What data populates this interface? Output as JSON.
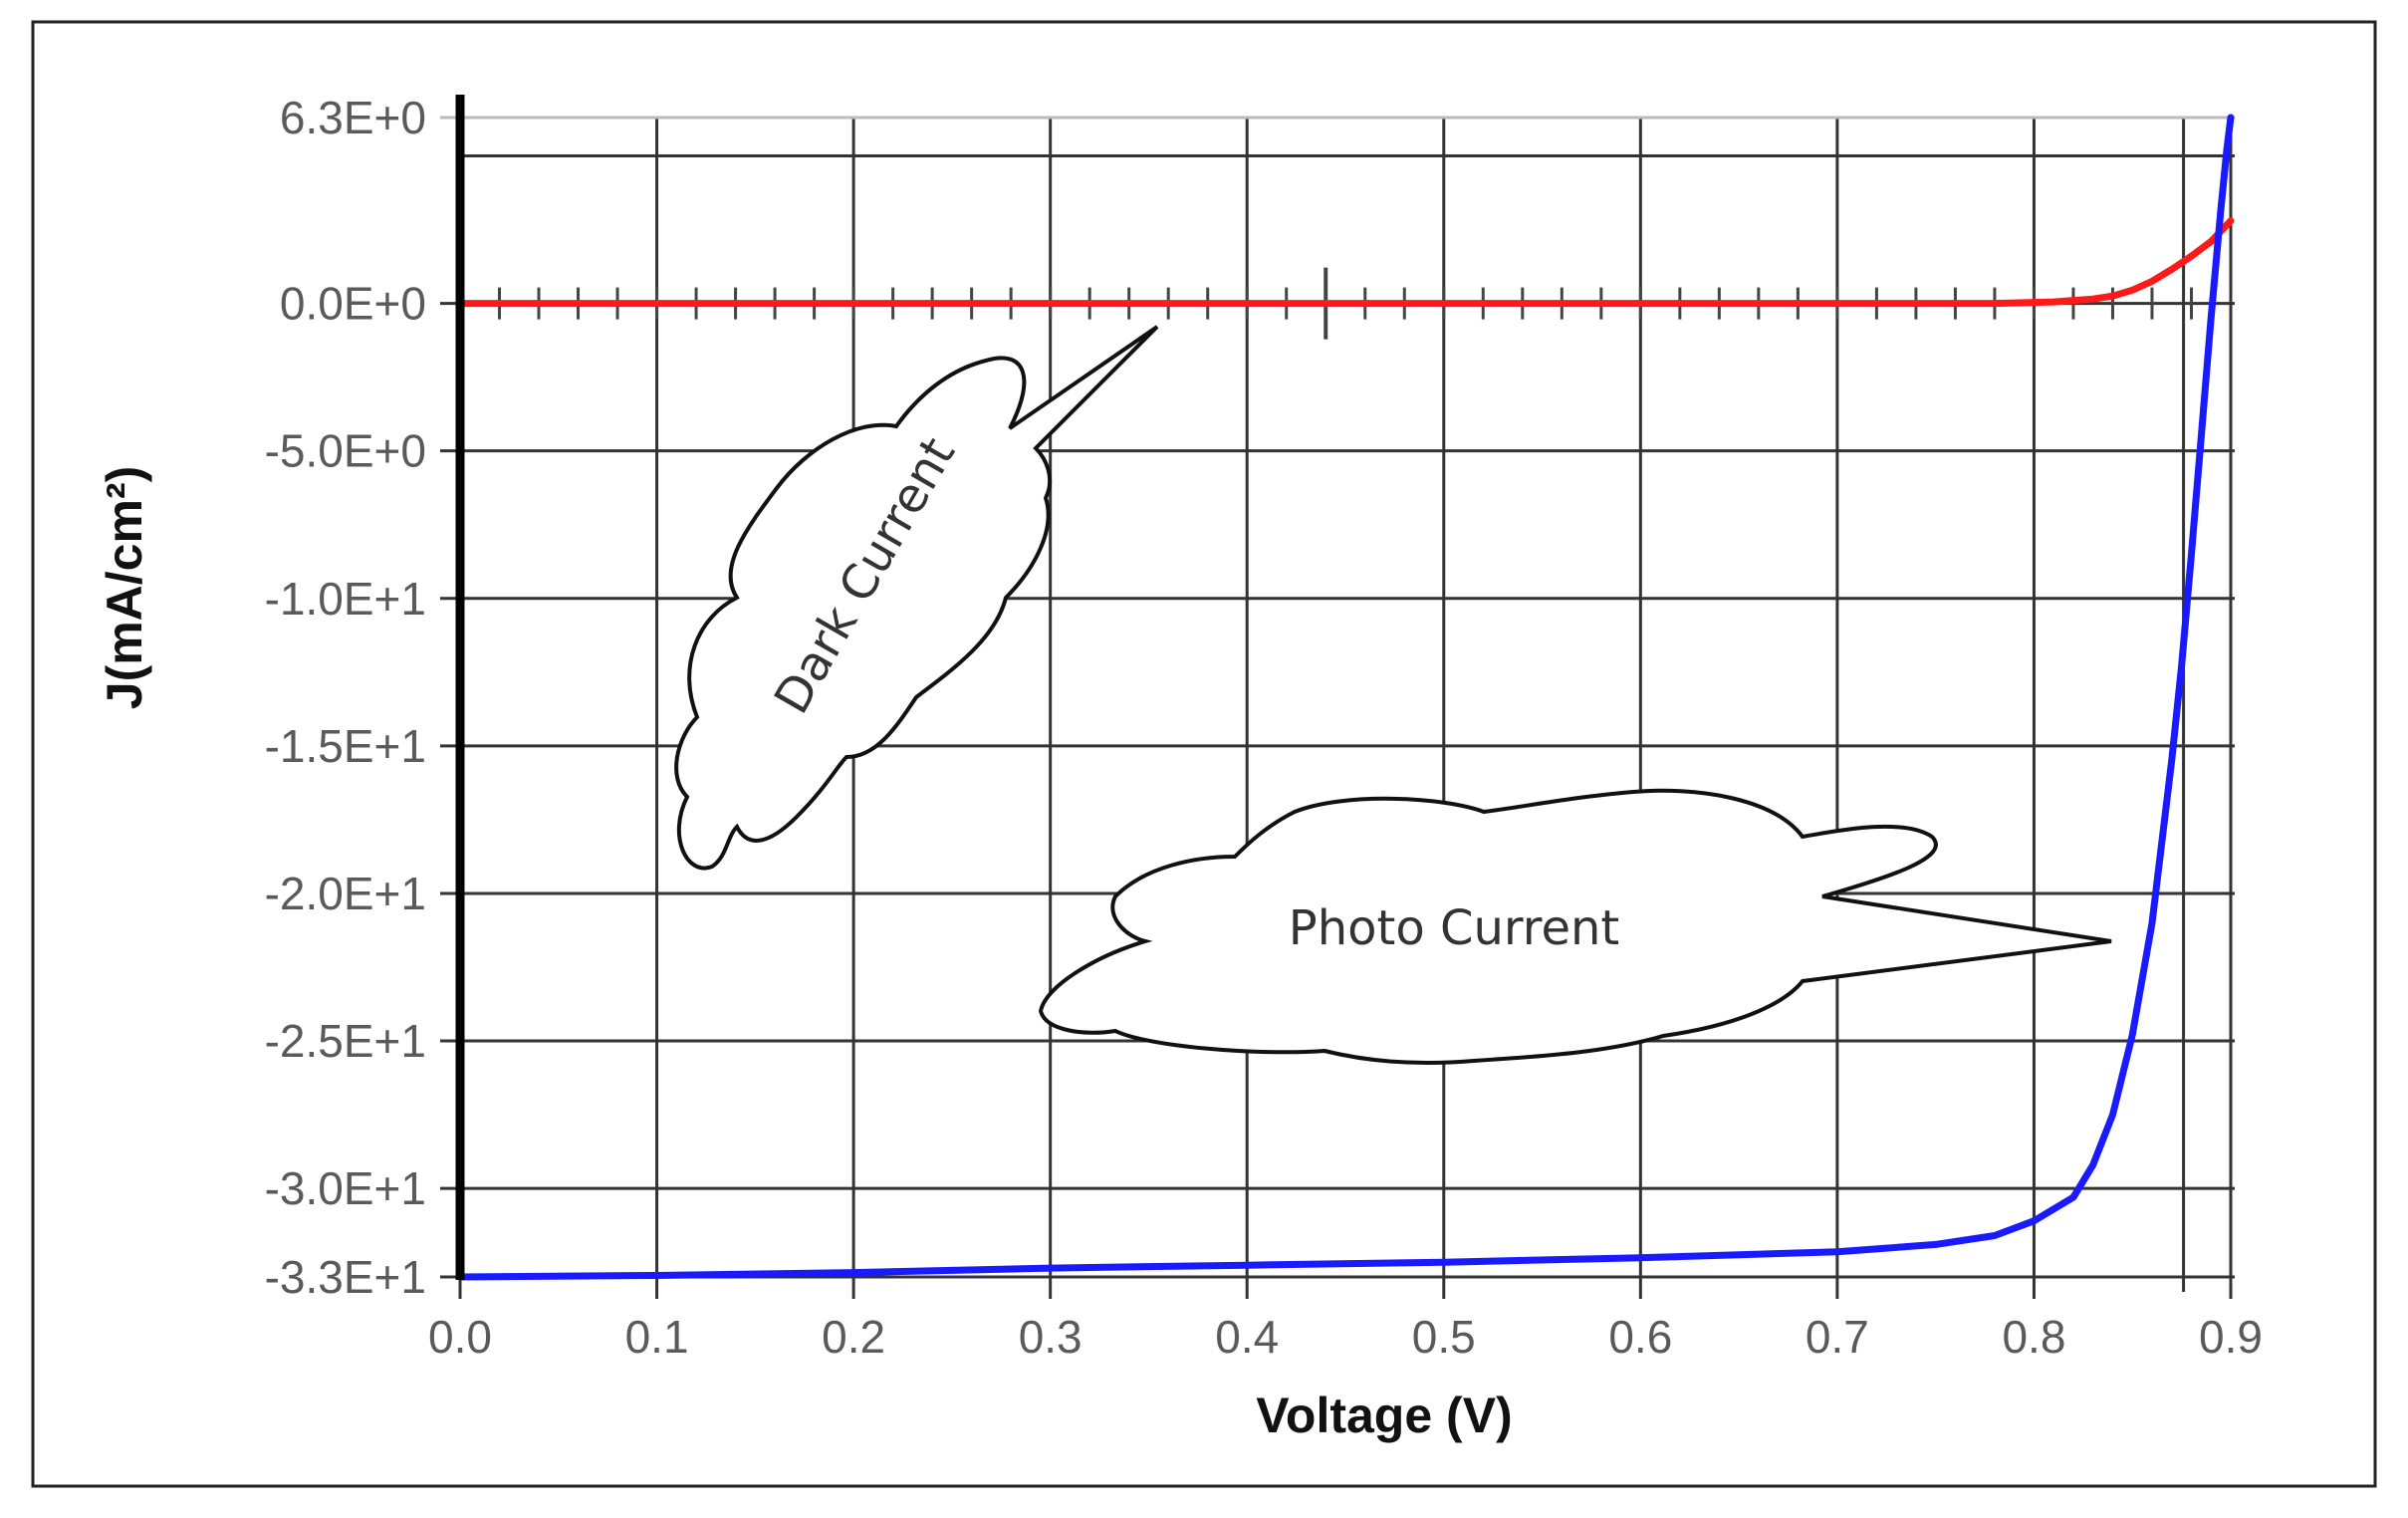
{
  "chart_data": {
    "type": "line",
    "title": "",
    "xlabel": "Voltage (V)",
    "ylabel": "J(mA/cm²)",
    "xlim": [
      0.0,
      0.9
    ],
    "ylim": [
      -33,
      6.3
    ],
    "x_ticks": [
      "0.0",
      "0.1",
      "0.2",
      "0.3",
      "0.4",
      "0.5",
      "0.6",
      "0.7",
      "0.8",
      "0.9"
    ],
    "y_ticks": [
      {
        "value": 6.3,
        "label": "6.3E+0"
      },
      {
        "value": 0,
        "label": "0.0E+0"
      },
      {
        "value": -5,
        "label": "-5.0E+0"
      },
      {
        "value": -10,
        "label": "-1.0E+1"
      },
      {
        "value": -15,
        "label": "-1.5E+1"
      },
      {
        "value": -20,
        "label": "-2.0E+1"
      },
      {
        "value": -25,
        "label": "-2.5E+1"
      },
      {
        "value": -30,
        "label": "-3.0E+1"
      },
      {
        "value": -33,
        "label": "-3.3E+1"
      }
    ],
    "grid": true,
    "series": [
      {
        "name": "Dark Current",
        "color": "#ff1a1a",
        "x": [
          0.0,
          0.1,
          0.2,
          0.3,
          0.4,
          0.5,
          0.6,
          0.7,
          0.78,
          0.81,
          0.83,
          0.84,
          0.85,
          0.86,
          0.87,
          0.88,
          0.89,
          0.9
        ],
        "y": [
          0,
          0,
          0,
          0,
          0,
          0,
          0,
          0,
          0,
          0.05,
          0.15,
          0.25,
          0.45,
          0.75,
          1.15,
          1.6,
          2.1,
          2.8
        ]
      },
      {
        "name": "Photo Current",
        "color": "#1a1aff",
        "x": [
          0.0,
          0.1,
          0.2,
          0.3,
          0.4,
          0.5,
          0.6,
          0.7,
          0.75,
          0.78,
          0.8,
          0.82,
          0.83,
          0.84,
          0.85,
          0.86,
          0.87,
          0.875,
          0.88,
          0.885,
          0.89,
          0.895,
          0.898,
          0.9
        ],
        "y": [
          -33,
          -32.95,
          -32.85,
          -32.7,
          -32.6,
          -32.5,
          -32.35,
          -32.15,
          -31.9,
          -31.6,
          -31.1,
          -30.3,
          -29.2,
          -27.5,
          -24.8,
          -21.0,
          -15.5,
          -12.3,
          -8.5,
          -4.5,
          -0.5,
          3.2,
          5.2,
          6.3
        ]
      }
    ],
    "annotations": [
      "Dark Current",
      "Photo Current"
    ],
    "legend": "none"
  }
}
